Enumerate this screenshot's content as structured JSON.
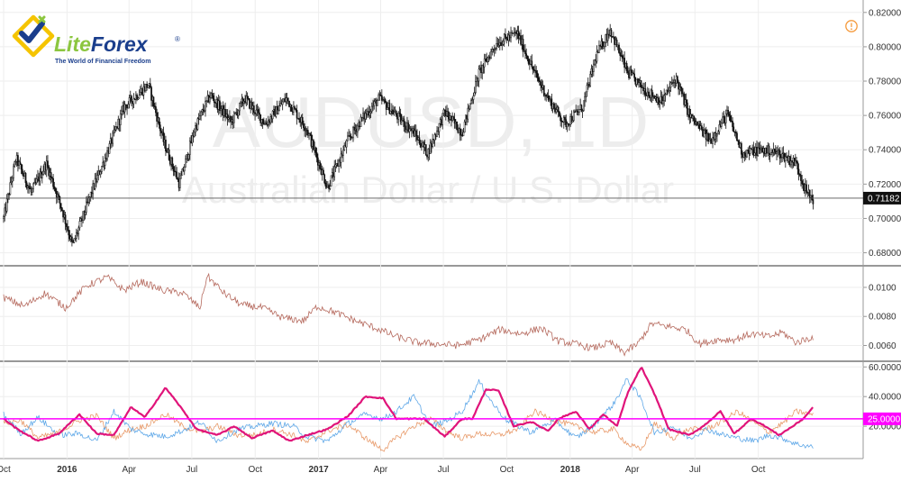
{
  "brand": {
    "name_part1": "Lite",
    "name_part2": "Forex",
    "registered": "®",
    "tagline": "The World of Financial Freedom",
    "colors": {
      "green": "#8cc63f",
      "blue": "#1a3e8c",
      "yellow": "#f5c400"
    }
  },
  "watermark": {
    "symbol": "AUDUSD, 1D",
    "description": "Australian Dollar / U.S. Dollar"
  },
  "alert_icon": "clock-alert-icon",
  "chart_data": [
    {
      "type": "candlestick",
      "symbol": "AUDUSD",
      "timeframe": "1D",
      "ylim": [
        0.674,
        0.822
      ],
      "y_ticks": [
        "0.82000",
        "0.80000",
        "0.78000",
        "0.76000",
        "0.74000",
        "0.72000",
        "0.70000",
        "0.68000"
      ],
      "last_price": "0.71182",
      "last_price_value": 0.71182,
      "x_tick_labels": [
        "Oct",
        "2016",
        "Apr",
        "Jul",
        "Oct",
        "2017",
        "Apr",
        "Jul",
        "Oct",
        "2018",
        "Apr",
        "Jul",
        "Oct"
      ],
      "x_ticks_bold": [
        "2016",
        "2017",
        "2018"
      ],
      "x_domain": [
        0,
        1200
      ],
      "x_tick_positions": [
        0,
        92,
        182,
        273,
        365,
        457,
        547,
        638,
        730,
        822,
        912,
        1003,
        1095
      ],
      "price_path": [
        [
          0,
          0.7
        ],
        [
          18,
          0.735
        ],
        [
          40,
          0.715
        ],
        [
          62,
          0.732
        ],
        [
          85,
          0.705
        ],
        [
          100,
          0.684
        ],
        [
          130,
          0.718
        ],
        [
          150,
          0.738
        ],
        [
          175,
          0.765
        ],
        [
          210,
          0.778
        ],
        [
          232,
          0.745
        ],
        [
          255,
          0.72
        ],
        [
          278,
          0.753
        ],
        [
          300,
          0.772
        ],
        [
          330,
          0.756
        ],
        [
          350,
          0.77
        ],
        [
          380,
          0.755
        ],
        [
          410,
          0.77
        ],
        [
          440,
          0.752
        ],
        [
          470,
          0.718
        ],
        [
          500,
          0.746
        ],
        [
          520,
          0.758
        ],
        [
          545,
          0.77
        ],
        [
          570,
          0.76
        ],
        [
          595,
          0.75
        ],
        [
          615,
          0.738
        ],
        [
          640,
          0.762
        ],
        [
          665,
          0.75
        ],
        [
          690,
          0.785
        ],
        [
          715,
          0.802
        ],
        [
          745,
          0.808
        ],
        [
          770,
          0.785
        ],
        [
          790,
          0.77
        ],
        [
          815,
          0.755
        ],
        [
          840,
          0.765
        ],
        [
          860,
          0.795
        ],
        [
          880,
          0.81
        ],
        [
          905,
          0.785
        ],
        [
          930,
          0.775
        ],
        [
          955,
          0.768
        ],
        [
          975,
          0.782
        ],
        [
          995,
          0.76
        ],
        [
          1025,
          0.745
        ],
        [
          1050,
          0.761
        ],
        [
          1072,
          0.738
        ],
        [
          1100,
          0.74
        ],
        [
          1125,
          0.738
        ],
        [
          1150,
          0.732
        ],
        [
          1165,
          0.715
        ],
        [
          1175,
          0.711
        ]
      ]
    },
    {
      "type": "line",
      "name": "",
      "color": "#b5695d",
      "ylim": [
        0.0051,
        0.0113
      ],
      "y_ticks": [
        "0.0100",
        "0.0080",
        "0.0060"
      ],
      "x_domain": [
        0,
        1200
      ],
      "points": [
        [
          0,
          0.0093
        ],
        [
          30,
          0.0087
        ],
        [
          60,
          0.0096
        ],
        [
          90,
          0.0086
        ],
        [
          120,
          0.0101
        ],
        [
          150,
          0.0107
        ],
        [
          175,
          0.0098
        ],
        [
          200,
          0.0104
        ],
        [
          230,
          0.0098
        ],
        [
          260,
          0.0096
        ],
        [
          285,
          0.0086
        ],
        [
          295,
          0.0108
        ],
        [
          320,
          0.0096
        ],
        [
          345,
          0.0088
        ],
        [
          375,
          0.0086
        ],
        [
          405,
          0.0079
        ],
        [
          435,
          0.0077
        ],
        [
          455,
          0.0087
        ],
        [
          480,
          0.0083
        ],
        [
          510,
          0.0077
        ],
        [
          540,
          0.0072
        ],
        [
          570,
          0.0066
        ],
        [
          600,
          0.0062
        ],
        [
          630,
          0.0061
        ],
        [
          660,
          0.006
        ],
        [
          690,
          0.0064
        ],
        [
          720,
          0.0071
        ],
        [
          750,
          0.0068
        ],
        [
          780,
          0.0072
        ],
        [
          805,
          0.0063
        ],
        [
          830,
          0.0061
        ],
        [
          855,
          0.0058
        ],
        [
          880,
          0.0062
        ],
        [
          900,
          0.0055
        ],
        [
          920,
          0.0061
        ],
        [
          940,
          0.0075
        ],
        [
          965,
          0.0073
        ],
        [
          990,
          0.0071
        ],
        [
          1010,
          0.0061
        ],
        [
          1035,
          0.0064
        ],
        [
          1060,
          0.0064
        ],
        [
          1085,
          0.0068
        ],
        [
          1110,
          0.0066
        ],
        [
          1130,
          0.0069
        ],
        [
          1150,
          0.0062
        ],
        [
          1175,
          0.0066
        ]
      ]
    },
    {
      "type": "line",
      "ylim": [
        0,
        62
      ],
      "y_ticks": [
        "60.0000",
        "40.0000",
        "20.0000"
      ],
      "level_label": "25.0000",
      "level_value": 25,
      "level_color": "#ff00ff",
      "x_domain": [
        0,
        1200
      ],
      "series": [
        {
          "name": "",
          "color": "#e0147a",
          "values": [
            [
              0,
              25
            ],
            [
              20,
              18
            ],
            [
              50,
              10
            ],
            [
              80,
              15
            ],
            [
              110,
              28
            ],
            [
              135,
              15
            ],
            [
              160,
              14
            ],
            [
              185,
              33
            ],
            [
              205,
              26
            ],
            [
              235,
              46
            ],
            [
              255,
              34
            ],
            [
              280,
              18
            ],
            [
              310,
              14
            ],
            [
              335,
              20
            ],
            [
              360,
              12
            ],
            [
              390,
              17
            ],
            [
              415,
              10
            ],
            [
              440,
              14
            ],
            [
              470,
              18
            ],
            [
              500,
              27
            ],
            [
              525,
              40
            ],
            [
              550,
              39
            ],
            [
              570,
              25
            ],
            [
              590,
              25
            ],
            [
              610,
              25
            ],
            [
              640,
              13
            ],
            [
              665,
              25
            ],
            [
              680,
              25
            ],
            [
              700,
              45
            ],
            [
              718,
              44
            ],
            [
              740,
              20
            ],
            [
              765,
              23
            ],
            [
              790,
              17
            ],
            [
              805,
              25
            ],
            [
              830,
              30
            ],
            [
              850,
              18
            ],
            [
              870,
              28
            ],
            [
              890,
              20
            ],
            [
              905,
              42
            ],
            [
              925,
              60
            ],
            [
              945,
              41
            ],
            [
              965,
              18
            ],
            [
              995,
              14
            ],
            [
              1015,
              20
            ],
            [
              1040,
              30
            ],
            [
              1060,
              15
            ],
            [
              1085,
              25
            ],
            [
              1105,
              20
            ],
            [
              1125,
              14
            ],
            [
              1145,
              20
            ],
            [
              1160,
              25
            ],
            [
              1175,
              33
            ]
          ]
        },
        {
          "name": "",
          "color": "#e89a6a",
          "values": [
            [
              0,
              22
            ],
            [
              25,
              24
            ],
            [
              50,
              12
            ],
            [
              80,
              16
            ],
            [
              110,
              24
            ],
            [
              135,
              27
            ],
            [
              160,
              12
            ],
            [
              185,
              18
            ],
            [
              205,
              20
            ],
            [
              235,
              28
            ],
            [
              260,
              20
            ],
            [
              285,
              16
            ],
            [
              310,
              20
            ],
            [
              340,
              14
            ],
            [
              365,
              14
            ],
            [
              390,
              18
            ],
            [
              420,
              14
            ],
            [
              440,
              9
            ],
            [
              470,
              17
            ],
            [
              500,
              21
            ],
            [
              525,
              12
            ],
            [
              550,
              4
            ],
            [
              570,
              12
            ],
            [
              595,
              20
            ],
            [
              620,
              25
            ],
            [
              645,
              16
            ],
            [
              665,
              12
            ],
            [
              690,
              15
            ],
            [
              720,
              14
            ],
            [
              745,
              18
            ],
            [
              770,
              30
            ],
            [
              800,
              24
            ],
            [
              830,
              20
            ],
            [
              855,
              16
            ],
            [
              885,
              18
            ],
            [
              905,
              8
            ],
            [
              925,
              4
            ],
            [
              945,
              22
            ],
            [
              970,
              12
            ],
            [
              995,
              18
            ],
            [
              1020,
              18
            ],
            [
              1045,
              24
            ],
            [
              1065,
              30
            ],
            [
              1090,
              22
            ],
            [
              1110,
              16
            ],
            [
              1130,
              22
            ],
            [
              1150,
              30
            ],
            [
              1175,
              28
            ]
          ]
        },
        {
          "name": "",
          "color": "#5fa8e8",
          "values": [
            [
              0,
              28
            ],
            [
              25,
              15
            ],
            [
              50,
              26
            ],
            [
              80,
              14
            ],
            [
              110,
              15
            ],
            [
              135,
              10
            ],
            [
              160,
              30
            ],
            [
              185,
              18
            ],
            [
              205,
              15
            ],
            [
              235,
              13
            ],
            [
              260,
              17
            ],
            [
              285,
              23
            ],
            [
              310,
              10
            ],
            [
              340,
              18
            ],
            [
              365,
              20
            ],
            [
              390,
              22
            ],
            [
              420,
              20
            ],
            [
              440,
              13
            ],
            [
              470,
              10
            ],
            [
              500,
              22
            ],
            [
              525,
              28
            ],
            [
              550,
              25
            ],
            [
              570,
              30
            ],
            [
              595,
              40
            ],
            [
              620,
              20
            ],
            [
              645,
              24
            ],
            [
              665,
              30
            ],
            [
              690,
              50
            ],
            [
              710,
              35
            ],
            [
              730,
              24
            ],
            [
              765,
              16
            ],
            [
              800,
              24
            ],
            [
              830,
              12
            ],
            [
              855,
              20
            ],
            [
              885,
              35
            ],
            [
              905,
              52
            ],
            [
              925,
              38
            ],
            [
              945,
              15
            ],
            [
              970,
              20
            ],
            [
              995,
              12
            ],
            [
              1020,
              18
            ],
            [
              1045,
              14
            ],
            [
              1065,
              12
            ],
            [
              1090,
              10
            ],
            [
              1110,
              14
            ],
            [
              1130,
              12
            ],
            [
              1150,
              8
            ],
            [
              1175,
              6
            ]
          ]
        }
      ]
    }
  ]
}
